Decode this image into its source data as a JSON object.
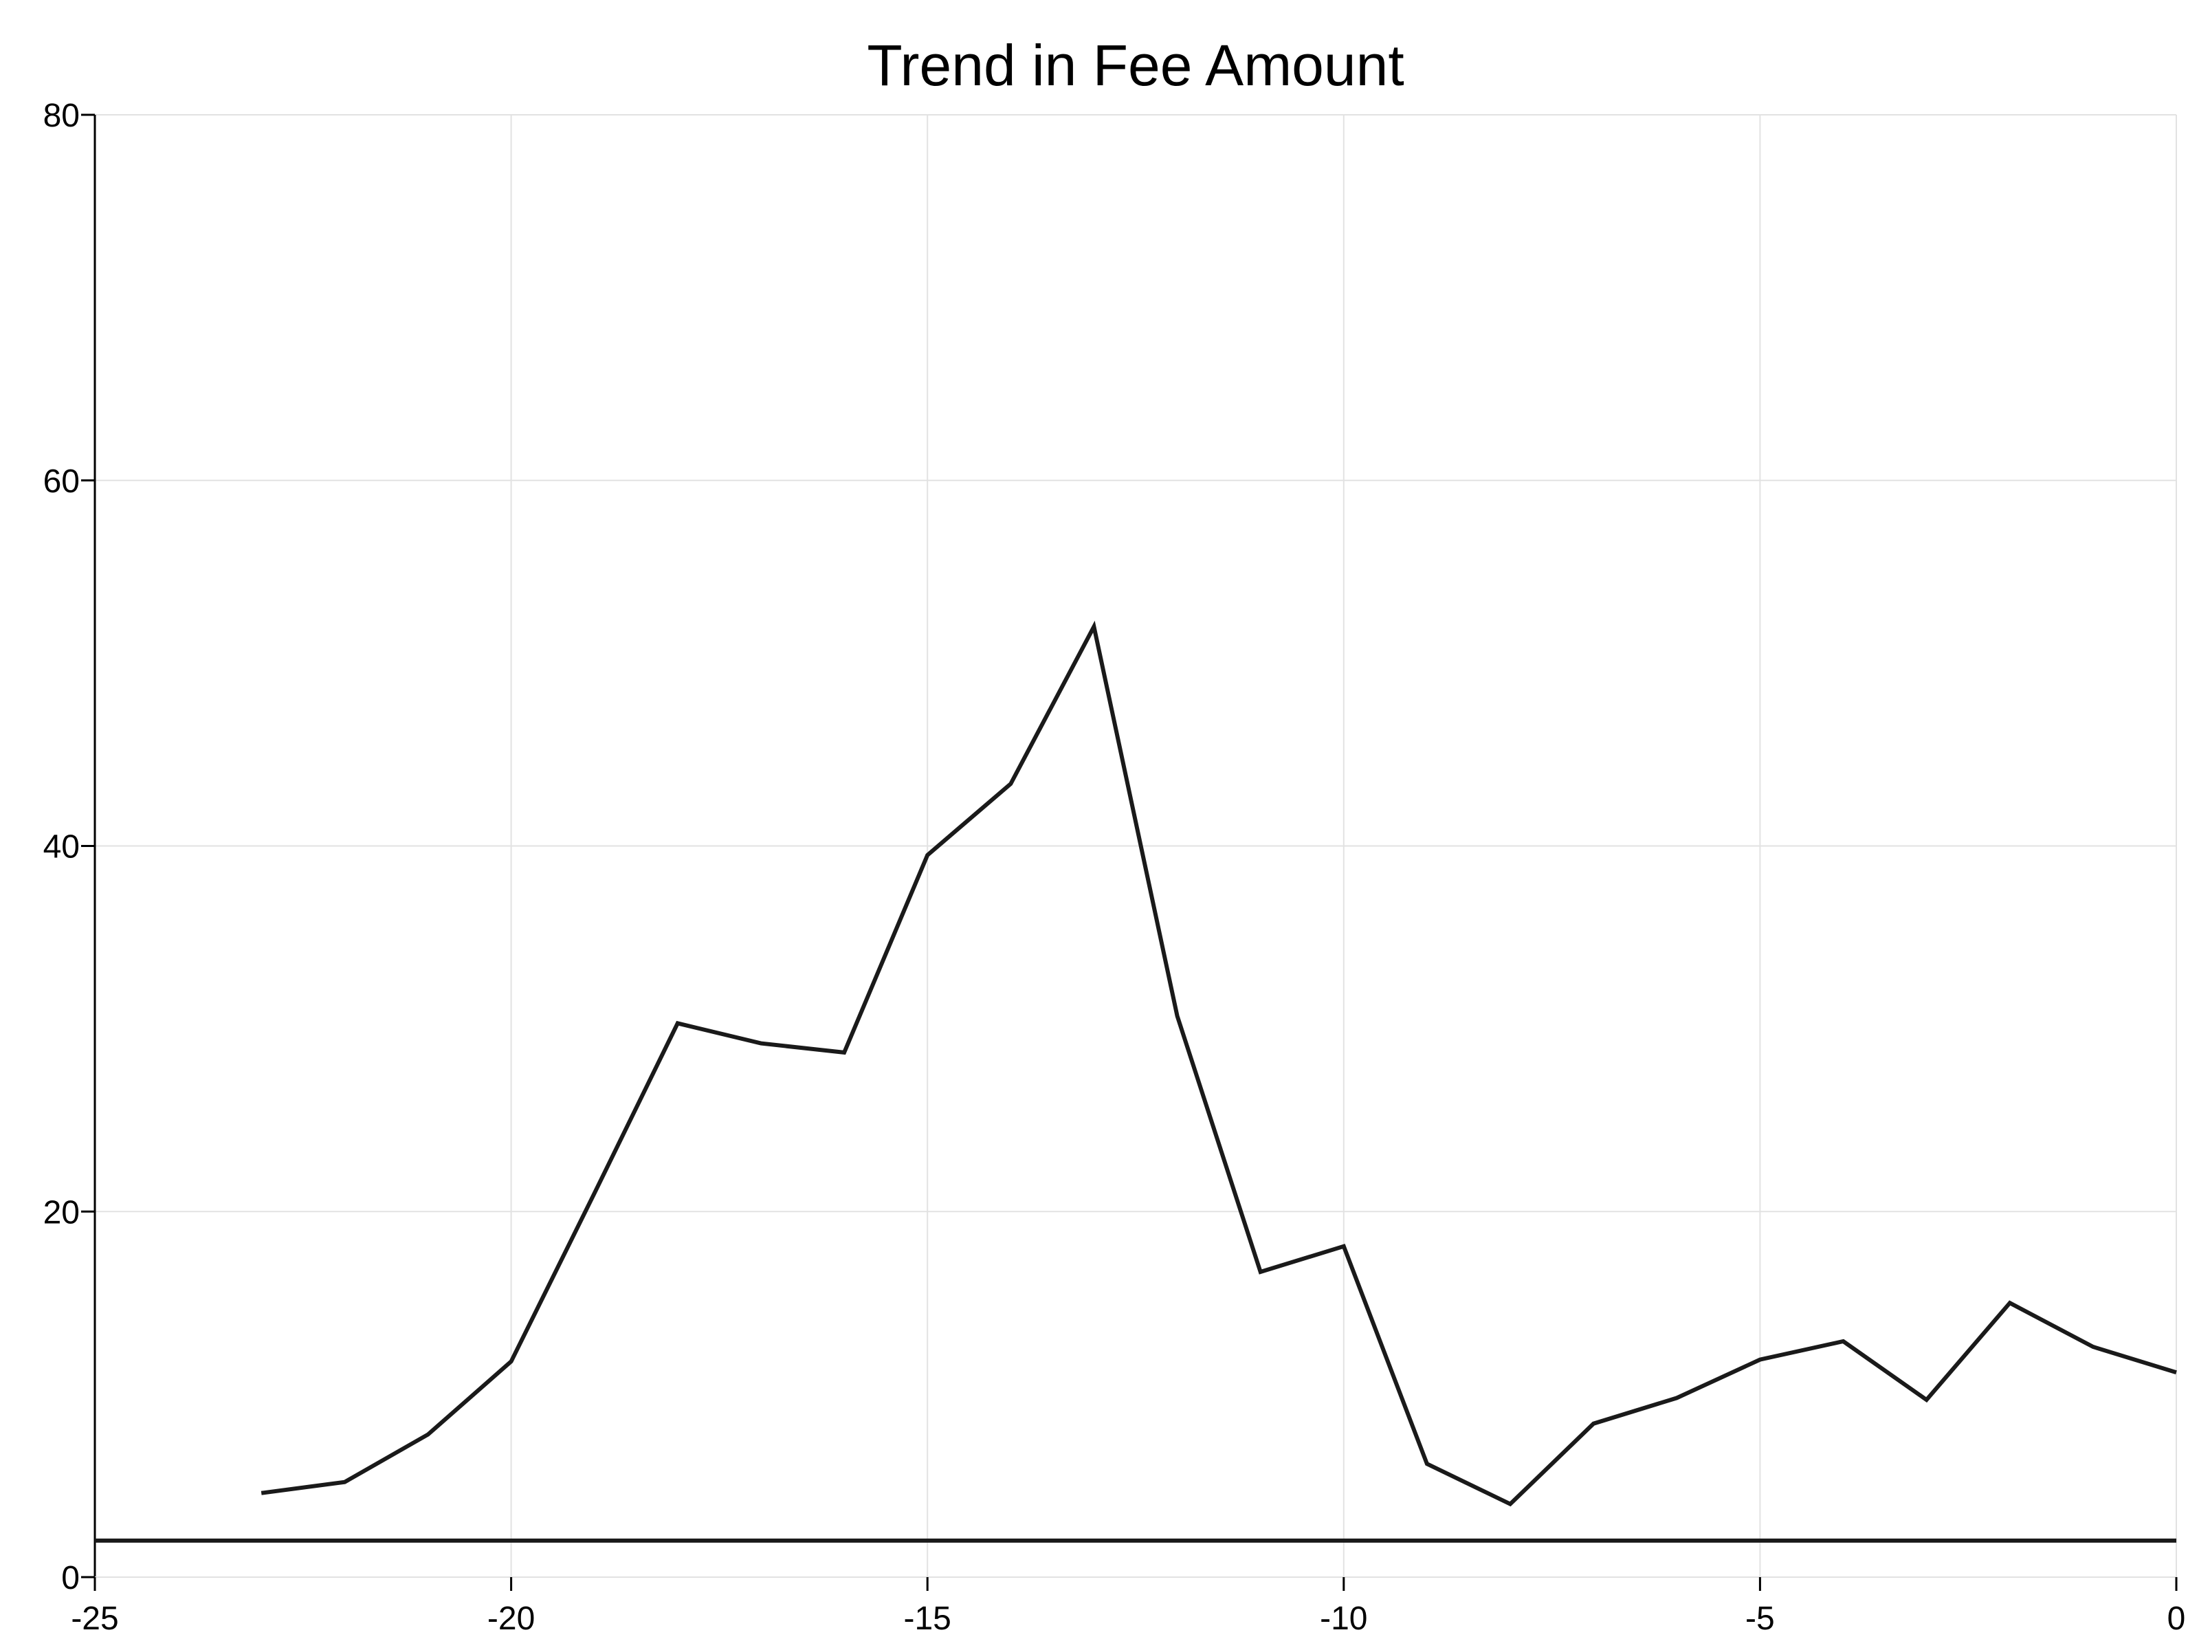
{
  "chart_data": {
    "type": "line",
    "title": "Trend in Fee Amount",
    "xlabel": "",
    "ylabel": "",
    "xlim": [
      -25,
      0
    ],
    "ylim": [
      0,
      80
    ],
    "x_ticks": [
      -25,
      -20,
      -15,
      -10,
      -5,
      0
    ],
    "x_tick_labels": [
      "-25",
      "-20",
      "-15",
      "-10",
      "-5",
      "0"
    ],
    "y_ticks": [
      0,
      20,
      40,
      60,
      80
    ],
    "y_tick_labels": [
      "0",
      "20",
      "40",
      "60",
      "80"
    ],
    "grid": true,
    "series": [
      {
        "x": [
          -23,
          -22,
          -21,
          -20,
          -19,
          -18,
          -17,
          -16,
          -15,
          -14,
          -13,
          -12,
          -11,
          -10,
          -9,
          -8,
          -7,
          -6,
          -5,
          -4,
          -3,
          -2,
          -1,
          0
        ],
        "values": [
          4.6,
          5.2,
          7.8,
          11.8,
          21.0,
          30.3,
          29.2,
          28.7,
          39.5,
          43.4,
          52.0,
          30.7,
          16.7,
          18.1,
          6.2,
          4.0,
          8.4,
          9.8,
          11.9,
          12.9,
          9.7,
          15.0,
          12.6,
          11.2
        ],
        "color": "#1a1a1a"
      }
    ],
    "reference_lines": [
      {
        "orientation": "horizontal",
        "y": 2.0,
        "color": "#1a1a1a"
      }
    ],
    "colors": {
      "line": "#1a1a1a",
      "grid": "#e2e2e2",
      "axis": "#000000"
    }
  }
}
